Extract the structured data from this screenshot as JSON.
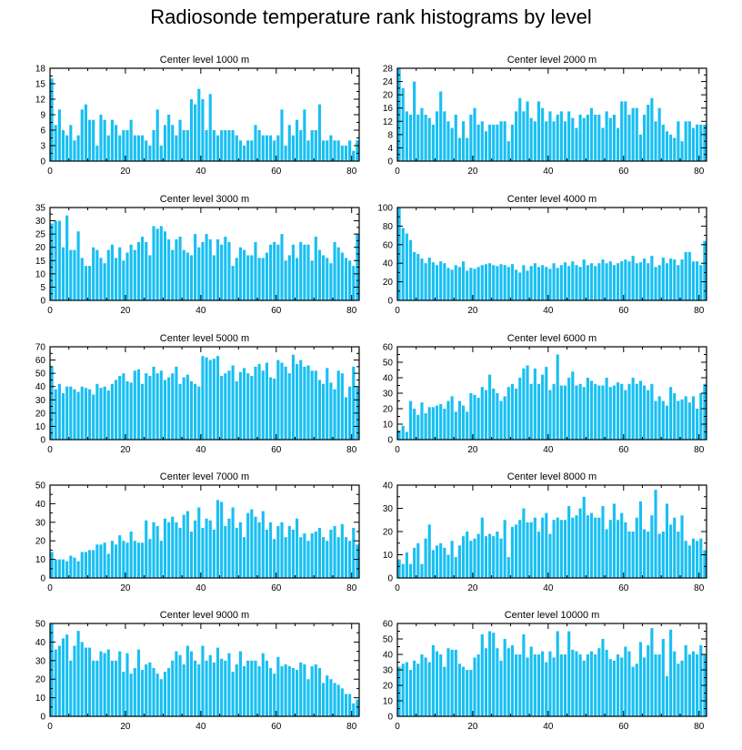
{
  "title": "Radiosonde temperature rank histograms by level",
  "colors": {
    "bar": "#19bff2",
    "bar_edge": "#ffffff",
    "axis": "#000000"
  },
  "chart_data": [
    {
      "type": "bar",
      "title": "Center level 1000 m",
      "xlim": [
        0,
        82
      ],
      "ylim": [
        0,
        18
      ],
      "xticks": [
        0,
        20,
        40,
        60,
        80
      ],
      "yticks": [
        0,
        3,
        6,
        9,
        12,
        15,
        18
      ],
      "values": [
        16,
        7,
        10,
        6,
        5,
        7,
        4,
        5,
        10,
        11,
        8,
        8,
        3,
        9,
        8,
        5,
        8,
        7,
        5,
        6,
        6,
        8,
        5,
        5,
        5,
        4,
        3,
        6,
        10,
        3,
        7,
        9,
        7,
        5,
        8,
        6,
        6,
        12,
        11,
        14,
        12,
        6,
        13,
        6,
        5,
        6,
        6,
        6,
        6,
        5,
        4,
        3,
        4,
        4,
        7,
        6,
        5,
        5,
        5,
        4,
        5,
        10,
        3,
        7,
        5,
        8,
        6,
        10,
        4,
        6,
        6,
        11,
        4,
        4,
        5,
        4,
        4,
        3,
        3,
        4,
        2,
        4
      ]
    },
    {
      "type": "bar",
      "title": "Center level 2000 m",
      "xlim": [
        0,
        82
      ],
      "ylim": [
        0,
        28
      ],
      "xticks": [
        0,
        20,
        40,
        60,
        80
      ],
      "yticks": [
        0,
        4,
        8,
        12,
        16,
        20,
        24,
        28
      ],
      "values": [
        28,
        22,
        15,
        14,
        24,
        14,
        16,
        14,
        13,
        11,
        15,
        21,
        15,
        12,
        10,
        14,
        7,
        12,
        7,
        14,
        16,
        11,
        12,
        9,
        11,
        11,
        11,
        12,
        12,
        6,
        11,
        15,
        19,
        15,
        18,
        13,
        12,
        18,
        16,
        12,
        15,
        12,
        14,
        15,
        12,
        15,
        13,
        10,
        14,
        13,
        14,
        16,
        14,
        14,
        10,
        15,
        13,
        14,
        10,
        18,
        18,
        14,
        16,
        16,
        8,
        14,
        17,
        19,
        12,
        16,
        11,
        9,
        8,
        7,
        12,
        6,
        12,
        12,
        10,
        11,
        11,
        11
      ]
    },
    {
      "type": "bar",
      "title": "Center level 3000 m",
      "xlim": [
        0,
        82
      ],
      "ylim": [
        0,
        35
      ],
      "xticks": [
        0,
        20,
        40,
        60,
        80
      ],
      "yticks": [
        0,
        5,
        10,
        15,
        20,
        25,
        30,
        35
      ],
      "values": [
        29,
        30,
        30,
        20,
        32,
        19,
        19,
        26,
        16,
        13,
        13,
        20,
        19,
        16,
        14,
        19,
        21,
        16,
        20,
        15,
        18,
        21,
        19,
        22,
        24,
        22,
        17,
        28,
        27,
        28,
        26,
        23,
        19,
        23,
        24,
        19,
        18,
        17,
        25,
        20,
        22,
        25,
        23,
        17,
        23,
        21,
        24,
        22,
        13,
        16,
        20,
        19,
        17,
        17,
        22,
        16,
        16,
        18,
        21,
        22,
        21,
        25,
        15,
        17,
        21,
        16,
        22,
        21,
        21,
        15,
        24,
        19,
        17,
        16,
        14,
        22,
        20,
        18,
        16,
        15,
        13,
        25
      ]
    },
    {
      "type": "bar",
      "title": "Center level 4000 m",
      "xlim": [
        0,
        82
      ],
      "ylim": [
        0,
        100
      ],
      "xticks": [
        0,
        20,
        40,
        60,
        80
      ],
      "yticks": [
        0,
        20,
        40,
        60,
        80,
        100
      ],
      "values": [
        100,
        78,
        72,
        65,
        52,
        50,
        45,
        40,
        46,
        41,
        38,
        42,
        40,
        35,
        33,
        38,
        36,
        42,
        32,
        35,
        34,
        36,
        38,
        39,
        40,
        38,
        37,
        39,
        38,
        36,
        39,
        33,
        30,
        38,
        32,
        37,
        40,
        36,
        38,
        36,
        34,
        40,
        35,
        38,
        41,
        37,
        42,
        38,
        36,
        44,
        38,
        40,
        37,
        40,
        44,
        40,
        42,
        38,
        40,
        42,
        44,
        42,
        48,
        40,
        41,
        45,
        40,
        48,
        36,
        38,
        46,
        40,
        45,
        44,
        38,
        44,
        52,
        52,
        42,
        42,
        38,
        64
      ]
    },
    {
      "type": "bar",
      "title": "Center level 5000 m",
      "xlim": [
        0,
        82
      ],
      "ylim": [
        0,
        70
      ],
      "xticks": [
        0,
        20,
        40,
        60,
        80
      ],
      "yticks": [
        0,
        10,
        20,
        30,
        40,
        50,
        60,
        70
      ],
      "values": [
        55,
        38,
        42,
        35,
        40,
        40,
        38,
        36,
        40,
        39,
        38,
        34,
        42,
        39,
        40,
        37,
        42,
        45,
        48,
        50,
        44,
        43,
        52,
        53,
        42,
        50,
        48,
        55,
        50,
        52,
        45,
        47,
        50,
        55,
        42,
        47,
        49,
        44,
        42,
        40,
        63,
        62,
        60,
        61,
        63,
        48,
        50,
        52,
        56,
        44,
        51,
        54,
        50,
        48,
        55,
        57,
        52,
        58,
        47,
        46,
        60,
        58,
        55,
        50,
        64,
        57,
        60,
        55,
        56,
        52,
        52,
        45,
        42,
        54,
        43,
        38,
        52,
        50,
        32,
        40,
        55,
        40
      ]
    },
    {
      "type": "bar",
      "title": "Center level 6000 m",
      "xlim": [
        0,
        82
      ],
      "ylim": [
        0,
        60
      ],
      "xticks": [
        0,
        20,
        40,
        60,
        80
      ],
      "yticks": [
        0,
        10,
        20,
        30,
        40,
        50,
        60
      ],
      "values": [
        6,
        9,
        5,
        25,
        20,
        16,
        24,
        17,
        21,
        21,
        22,
        23,
        20,
        25,
        28,
        18,
        25,
        22,
        18,
        30,
        29,
        27,
        34,
        32,
        42,
        33,
        30,
        25,
        28,
        34,
        36,
        33,
        40,
        46,
        48,
        36,
        46,
        36,
        42,
        47,
        32,
        36,
        55,
        35,
        35,
        40,
        44,
        35,
        36,
        34,
        40,
        38,
        36,
        35,
        35,
        40,
        34,
        35,
        37,
        36,
        32,
        36,
        40,
        36,
        38,
        35,
        32,
        36,
        25,
        28,
        25,
        22,
        34,
        30,
        25,
        26,
        28,
        24,
        28,
        20,
        30,
        36
      ]
    },
    {
      "type": "bar",
      "title": "Center level 7000 m",
      "xlim": [
        0,
        82
      ],
      "ylim": [
        0,
        50
      ],
      "xticks": [
        0,
        20,
        40,
        60,
        80
      ],
      "yticks": [
        0,
        10,
        20,
        30,
        40,
        50
      ],
      "values": [
        14,
        10,
        10,
        10,
        9,
        12,
        11,
        9,
        14,
        14,
        15,
        15,
        18,
        18,
        19,
        13,
        20,
        18,
        23,
        20,
        19,
        25,
        20,
        19,
        19,
        31,
        21,
        30,
        28,
        20,
        32,
        30,
        33,
        30,
        27,
        34,
        36,
        25,
        31,
        38,
        27,
        32,
        31,
        26,
        42,
        41,
        28,
        32,
        38,
        27,
        30,
        22,
        35,
        37,
        33,
        30,
        36,
        26,
        30,
        21,
        28,
        30,
        22,
        28,
        26,
        32,
        22,
        24,
        20,
        24,
        25,
        27,
        22,
        20,
        26,
        28,
        22,
        29,
        22,
        20,
        27,
        18
      ]
    },
    {
      "type": "bar",
      "title": "Center level 8000 m",
      "xlim": [
        0,
        82
      ],
      "ylim": [
        0,
        40
      ],
      "xticks": [
        0,
        20,
        40,
        60,
        80
      ],
      "yticks": [
        0,
        10,
        20,
        30,
        40
      ],
      "values": [
        8,
        6,
        11,
        6,
        13,
        15,
        6,
        17,
        23,
        12,
        14,
        15,
        13,
        10,
        16,
        9,
        14,
        18,
        20,
        16,
        17,
        19,
        26,
        18,
        19,
        18,
        20,
        17,
        25,
        9,
        22,
        23,
        25,
        30,
        24,
        24,
        26,
        20,
        26,
        28,
        19,
        25,
        26,
        25,
        25,
        31,
        26,
        27,
        30,
        35,
        27,
        28,
        26,
        26,
        31,
        21,
        25,
        32,
        25,
        28,
        24,
        20,
        20,
        26,
        33,
        21,
        20,
        27,
        38,
        19,
        20,
        32,
        23,
        26,
        20,
        27,
        16,
        14,
        17,
        16,
        17,
        12
      ]
    },
    {
      "type": "bar",
      "title": "Center level 9000 m",
      "xlim": [
        0,
        82
      ],
      "ylim": [
        0,
        50
      ],
      "xticks": [
        0,
        20,
        40,
        60,
        80
      ],
      "yticks": [
        0,
        10,
        20,
        30,
        40,
        50
      ],
      "values": [
        50,
        36,
        38,
        42,
        44,
        30,
        38,
        46,
        40,
        37,
        37,
        30,
        30,
        35,
        34,
        36,
        30,
        30,
        35,
        24,
        34,
        23,
        26,
        36,
        25,
        28,
        29,
        26,
        23,
        20,
        24,
        26,
        30,
        35,
        33,
        28,
        38,
        35,
        30,
        28,
        38,
        30,
        33,
        29,
        37,
        31,
        30,
        34,
        24,
        28,
        35,
        27,
        30,
        30,
        30,
        27,
        34,
        30,
        26,
        23,
        32,
        27,
        28,
        27,
        26,
        25,
        29,
        28,
        20,
        27,
        28,
        26,
        18,
        22,
        20,
        18,
        17,
        15,
        12,
        12,
        7,
        9
      ]
    },
    {
      "type": "bar",
      "title": "Center level 10000 m",
      "xlim": [
        0,
        82
      ],
      "ylim": [
        0,
        60
      ],
      "xticks": [
        0,
        20,
        40,
        60,
        80
      ],
      "yticks": [
        0,
        10,
        20,
        30,
        40,
        50,
        60
      ],
      "values": [
        32,
        34,
        35,
        30,
        36,
        34,
        40,
        38,
        35,
        46,
        42,
        40,
        32,
        44,
        43,
        43,
        34,
        32,
        30,
        30,
        38,
        40,
        53,
        44,
        55,
        54,
        44,
        36,
        50,
        44,
        46,
        40,
        40,
        53,
        38,
        45,
        40,
        40,
        42,
        35,
        42,
        38,
        55,
        40,
        40,
        55,
        43,
        42,
        40,
        36,
        40,
        42,
        40,
        44,
        50,
        43,
        37,
        36,
        40,
        38,
        45,
        42,
        32,
        34,
        48,
        38,
        46,
        57,
        40,
        40,
        50,
        26,
        56,
        42,
        34,
        36,
        46,
        40,
        42,
        40,
        46,
        40
      ]
    }
  ]
}
